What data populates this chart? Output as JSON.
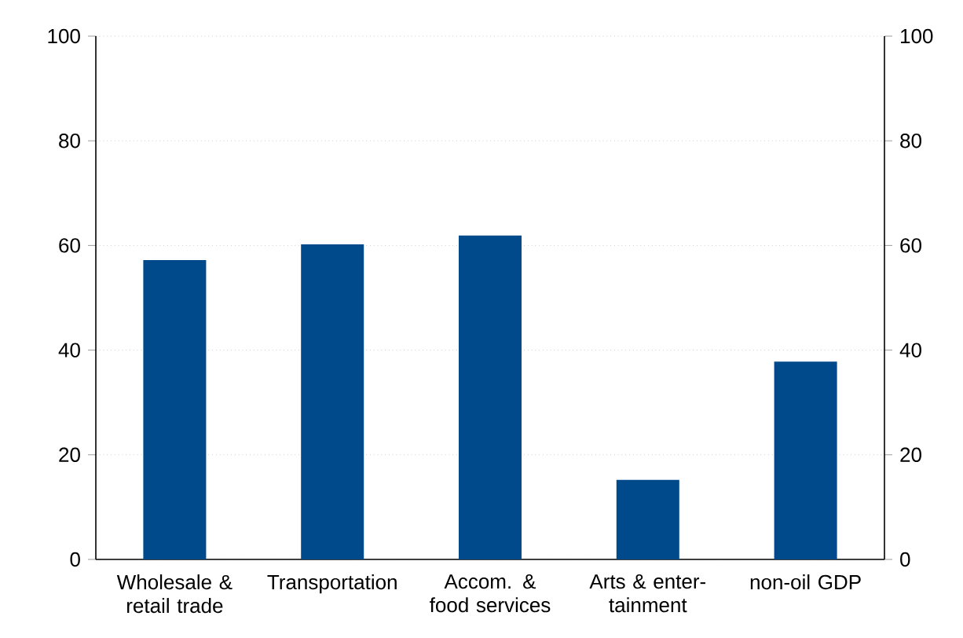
{
  "chart_data": {
    "type": "bar",
    "categories": [
      "Wholesale & retail trade",
      "Transportation",
      "Accom. & food services",
      "Arts & enter-tainment",
      "non-oil GDP"
    ],
    "values": [
      57.2,
      60.2,
      61.9,
      15.2,
      37.8
    ],
    "color": "#004a8b",
    "ylim": [
      0,
      100
    ],
    "yticks": [
      0,
      20,
      40,
      60,
      80,
      100
    ],
    "y2lim": [
      0,
      100
    ],
    "y2ticks": [
      0,
      20,
      40,
      60,
      80,
      100
    ],
    "grid": "y"
  }
}
